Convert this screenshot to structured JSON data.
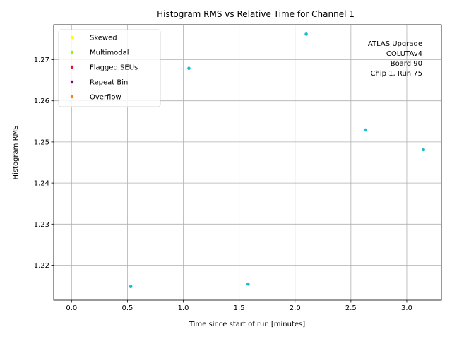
{
  "chart_data": {
    "type": "scatter",
    "title": "Histogram RMS vs Relative Time for Channel 1",
    "xlabel": "Time since start of run [minutes]",
    "ylabel": "Histogram RMS",
    "xlim": [
      -0.16,
      3.31
    ],
    "ylim": [
      1.2115,
      1.2785
    ],
    "x_ticks": [
      0.0,
      0.5,
      1.0,
      1.5,
      2.0,
      2.5,
      3.0
    ],
    "x_tick_labels": [
      "0.0",
      "0.5",
      "1.0",
      "1.5",
      "2.0",
      "2.5",
      "3.0"
    ],
    "y_ticks": [
      1.22,
      1.23,
      1.24,
      1.25,
      1.26,
      1.27
    ],
    "y_tick_labels": [
      "1.22",
      "1.23",
      "1.24",
      "1.25",
      "1.26",
      "1.27"
    ],
    "grid": true,
    "legend_position": "top-left",
    "legend": [
      {
        "label": "Skewed",
        "color": "#ffff00"
      },
      {
        "label": "Multimodal",
        "color": "#7fff00"
      },
      {
        "label": "Flagged SEUs",
        "color": "#dc143c"
      },
      {
        "label": "Repeat Bin",
        "color": "#800080"
      },
      {
        "label": "Overflow",
        "color": "#ff7f0e"
      }
    ],
    "series": [
      {
        "color": "#17becf",
        "x": [
          0.53,
          1.05,
          1.58,
          2.1,
          2.63,
          3.15
        ],
        "y": [
          1.2148,
          1.2679,
          1.2154,
          1.2762,
          1.2529,
          1.2481
        ]
      }
    ],
    "annotation_lines": [
      "ATLAS Upgrade",
      "COLUTAv4",
      "Board 90",
      "Chip 1, Run 75"
    ]
  }
}
